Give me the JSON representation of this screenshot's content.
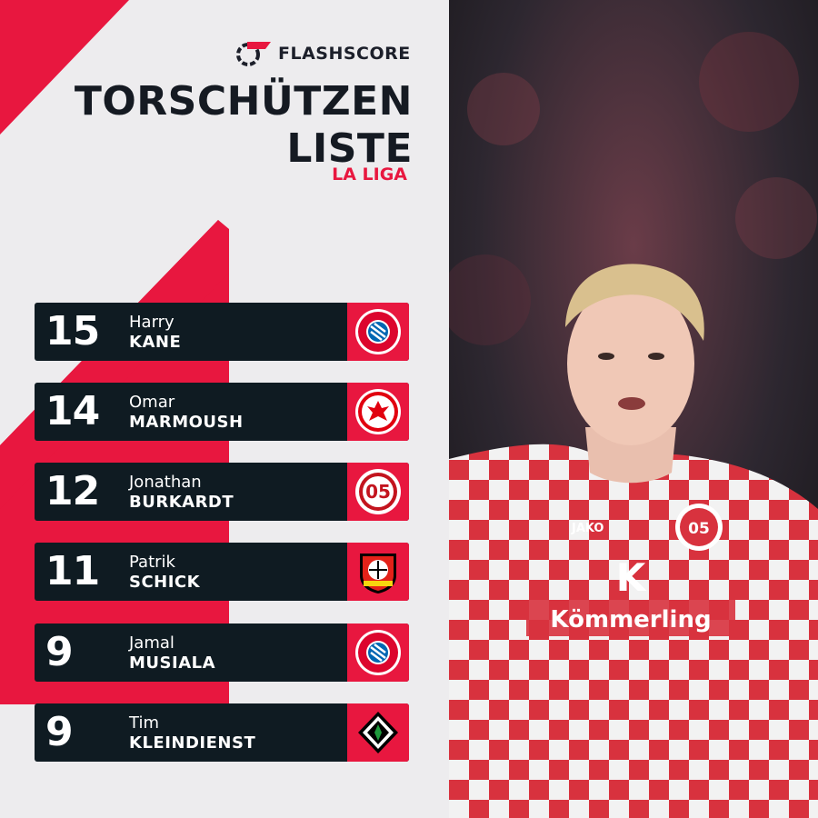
{
  "brand": {
    "name": "FLASHSCORE",
    "accent": "#e8173f",
    "dark": "#0f1b22"
  },
  "title": {
    "line1": "TORSCHÜTZEN",
    "line2": "LISTE"
  },
  "subtitle": "LA LIGA",
  "players": [
    {
      "goals": "15",
      "first": "Harry",
      "last": "KANE",
      "crest": "bayern-munchen-crest"
    },
    {
      "goals": "14",
      "first": "Omar",
      "last": "MARMOUSH",
      "crest": "eintracht-frankfurt-crest"
    },
    {
      "goals": "12",
      "first": "Jonathan",
      "last": "BURKARDT",
      "crest": "mainz-05-crest"
    },
    {
      "goals": "11",
      "first": "Patrik",
      "last": "SCHICK",
      "crest": "bayer-leverkusen-crest"
    },
    {
      "goals": "9",
      "first": "Jamal",
      "last": "MUSIALA",
      "crest": "bayern-munchen-crest"
    },
    {
      "goals": "9",
      "first": "Tim",
      "last": "KLEINDIENST",
      "crest": "gladbach-crest"
    }
  ],
  "photo": {
    "jersey_sponsor": "Kömmerling",
    "kit_brand": "JAKO"
  }
}
